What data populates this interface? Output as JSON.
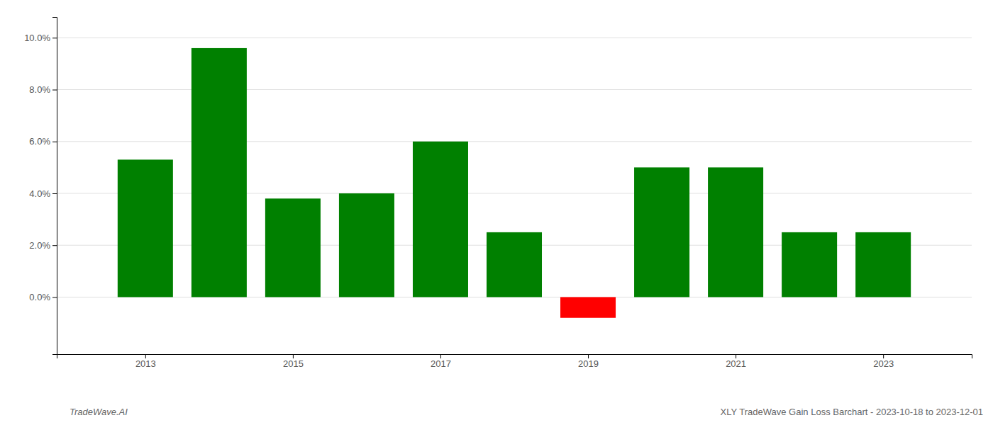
{
  "chart_data": {
    "type": "bar",
    "x": [
      2013,
      2014,
      2015,
      2016,
      2017,
      2018,
      2019,
      2020,
      2021,
      2022,
      2023
    ],
    "values": [
      0.053,
      0.096,
      0.038,
      0.04,
      0.06,
      0.025,
      -0.008,
      0.05,
      0.05,
      0.025,
      0.025
    ],
    "colors": [
      "#008000",
      "#008000",
      "#008000",
      "#008000",
      "#008000",
      "#008000",
      "#ff0000",
      "#008000",
      "#008000",
      "#008000",
      "#008000"
    ],
    "xlim": [
      2011.8,
      2024.2
    ],
    "xticks": [
      2013,
      2015,
      2017,
      2019,
      2021,
      2023
    ],
    "ylim": [
      -0.022,
      0.108
    ],
    "yticks": [
      {
        "value": 0.0,
        "label": "0.0%"
      },
      {
        "value": 0.02,
        "label": "2.0%"
      },
      {
        "value": 0.04,
        "label": "4.0%"
      },
      {
        "value": 0.06,
        "label": "6.0%"
      },
      {
        "value": 0.08,
        "label": "8.0%"
      },
      {
        "value": 0.1,
        "label": "10.0%"
      }
    ],
    "grid": true,
    "annotations": [
      "TradeWave.AI",
      "XLY TradeWave Gain Loss Barchart - 2023-10-18 to 2023-12-01"
    ]
  }
}
